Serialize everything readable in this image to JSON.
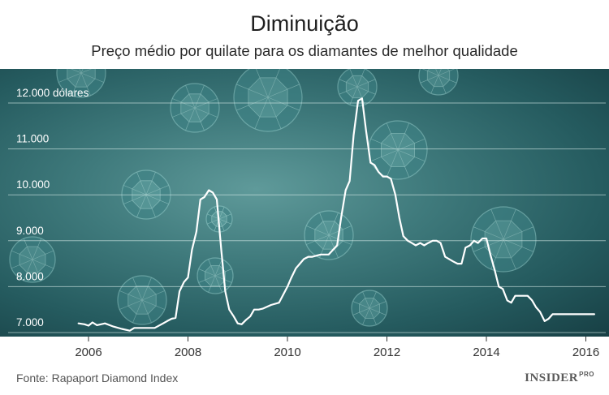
{
  "chart_data": {
    "type": "line",
    "title": "Diminuição",
    "subtitle": "Preço médio por quilate para os diamantes de melhor qualidade",
    "xlabel": "",
    "ylabel": "",
    "xlim": [
      2005.2,
      2016.4
    ],
    "ylim": [
      7000,
      12500
    ],
    "y_ticks": [
      {
        "value": 7000,
        "label": "7.000"
      },
      {
        "value": 8000,
        "label": "8.000"
      },
      {
        "value": 9000,
        "label": "9.000"
      },
      {
        "value": 10000,
        "label": "10.000"
      },
      {
        "value": 11000,
        "label": "11.000"
      },
      {
        "value": 12000,
        "label": "12.000 dólares"
      }
    ],
    "x_ticks": [
      {
        "value": 2006,
        "label": "2006"
      },
      {
        "value": 2008,
        "label": "2008"
      },
      {
        "value": 2010,
        "label": "2010"
      },
      {
        "value": 2012,
        "label": "2012"
      },
      {
        "value": 2014,
        "label": "2014"
      },
      {
        "value": 2016,
        "label": "2016"
      }
    ],
    "grid": true,
    "line_color": "#ffffff",
    "series": [
      {
        "x": [
          2005.8,
          2005.92,
          2006.0,
          2006.08,
          2006.17,
          2006.33,
          2006.5,
          2006.67,
          2006.83,
          2006.92,
          2007.0,
          2007.17,
          2007.33,
          2007.5,
          2007.58,
          2007.67,
          2007.75,
          2007.83,
          2007.92,
          2008.0,
          2008.08,
          2008.17,
          2008.25,
          2008.33,
          2008.42,
          2008.5,
          2008.58,
          2008.67,
          2008.75,
          2008.83,
          2008.92,
          2009.0,
          2009.08,
          2009.17,
          2009.25,
          2009.33,
          2009.42,
          2009.5,
          2009.67,
          2009.83,
          2010.0,
          2010.08,
          2010.17,
          2010.25,
          2010.33,
          2010.42,
          2010.5,
          2010.67,
          2010.83,
          2011.0,
          2011.08,
          2011.17,
          2011.25,
          2011.33,
          2011.42,
          2011.5,
          2011.58,
          2011.67,
          2011.75,
          2011.83,
          2011.92,
          2012.0,
          2012.08,
          2012.17,
          2012.25,
          2012.33,
          2012.42,
          2012.5,
          2012.58,
          2012.67,
          2012.75,
          2012.83,
          2012.92,
          2013.0,
          2013.08,
          2013.17,
          2013.25,
          2013.33,
          2013.42,
          2013.5,
          2013.58,
          2013.67,
          2013.75,
          2013.83,
          2013.92,
          2014.0,
          2014.08,
          2014.17,
          2014.25,
          2014.33,
          2014.42,
          2014.5,
          2014.58,
          2014.67,
          2014.75,
          2014.83,
          2014.92,
          2015.0,
          2015.08,
          2015.17,
          2015.25,
          2015.33,
          2015.42,
          2015.5,
          2015.58,
          2015.67,
          2015.75,
          2015.83,
          2015.92,
          2016.0,
          2016.08,
          2016.17
        ],
        "values": [
          7200,
          7180,
          7150,
          7220,
          7160,
          7200,
          7130,
          7080,
          7040,
          7100,
          7100,
          7100,
          7100,
          7200,
          7250,
          7300,
          7320,
          7900,
          8100,
          8200,
          8800,
          9200,
          9900,
          9950,
          10100,
          10050,
          9900,
          8800,
          7900,
          7500,
          7350,
          7200,
          7180,
          7280,
          7350,
          7500,
          7500,
          7520,
          7600,
          7650,
          8000,
          8200,
          8400,
          8500,
          8600,
          8650,
          8650,
          8700,
          8700,
          8900,
          9500,
          10100,
          10300,
          11300,
          12050,
          12100,
          11400,
          10700,
          10650,
          10500,
          10400,
          10400,
          10350,
          10000,
          9500,
          9100,
          9000,
          8950,
          8900,
          8950,
          8900,
          8950,
          9000,
          9000,
          8950,
          8650,
          8600,
          8550,
          8500,
          8500,
          8850,
          8900,
          9000,
          8950,
          9050,
          9050,
          8700,
          8350,
          8000,
          7950,
          7700,
          7650,
          7800,
          7800,
          7800,
          7800,
          7700,
          7550,
          7450,
          7250,
          7300,
          7400,
          7400,
          7400,
          7400,
          7400,
          7400,
          7400,
          7400,
          7400,
          7400,
          7400
        ]
      }
    ]
  },
  "source": "Fonte: Rapaport Diamond Index",
  "brand": {
    "name": "INSIDER",
    "suffix": "PRO"
  }
}
